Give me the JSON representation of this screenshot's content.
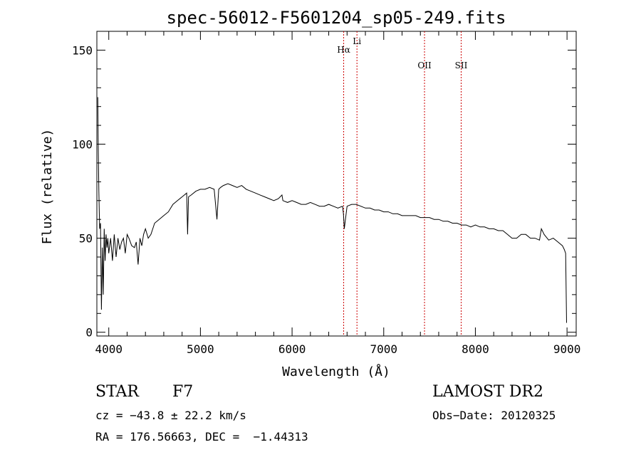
{
  "chart_data": {
    "type": "line",
    "title": "spec-56012-F5601204_sp05-249.fits",
    "xlabel": "Wavelength (Å)",
    "ylabel": "Flux (relative)",
    "xlim": [
      3870,
      9100
    ],
    "ylim": [
      -2,
      160
    ],
    "xticks": [
      4000,
      5000,
      6000,
      7000,
      8000,
      9000
    ],
    "yticks": [
      0,
      50,
      100,
      150
    ],
    "grid": false,
    "line_color": "#000000",
    "marker_color": "#cc0000",
    "series": [
      {
        "x": [
          3880,
          3885,
          3892,
          3900,
          3910,
          3920,
          3930,
          3940,
          3950,
          3960,
          3970,
          3980,
          3990,
          4000,
          4020,
          4040,
          4060,
          4080,
          4100,
          4120,
          4140,
          4160,
          4180,
          4200,
          4220,
          4250,
          4280,
          4300,
          4320,
          4340,
          4360,
          4380,
          4400,
          4430,
          4460,
          4500,
          4550,
          4600,
          4650,
          4700,
          4750,
          4800,
          4850,
          4860,
          4870,
          4900,
          4950,
          5000,
          5050,
          5100,
          5150,
          5180,
          5200,
          5220,
          5250,
          5300,
          5350,
          5400,
          5450,
          5500,
          5550,
          5600,
          5650,
          5700,
          5750,
          5800,
          5850,
          5890,
          5900,
          5950,
          6000,
          6050,
          6100,
          6150,
          6200,
          6250,
          6300,
          6350,
          6400,
          6450,
          6500,
          6550,
          6560,
          6570,
          6600,
          6650,
          6700,
          6750,
          6800,
          6850,
          6900,
          6950,
          7000,
          7050,
          7100,
          7150,
          7200,
          7250,
          7300,
          7350,
          7400,
          7450,
          7500,
          7550,
          7600,
          7650,
          7700,
          7750,
          7800,
          7850,
          7900,
          7950,
          8000,
          8050,
          8100,
          8150,
          8200,
          8250,
          8300,
          8350,
          8400,
          8450,
          8500,
          8550,
          8600,
          8650,
          8700,
          8720,
          8750,
          8800,
          8850,
          8900,
          8950,
          8970,
          8985,
          8995
        ],
        "y": [
          125,
          100,
          75,
          55,
          58,
          12,
          45,
          20,
          55,
          38,
          52,
          45,
          50,
          42,
          50,
          38,
          52,
          40,
          50,
          44,
          48,
          50,
          42,
          52,
          50,
          46,
          45,
          48,
          36,
          50,
          46,
          52,
          55,
          50,
          52,
          58,
          60,
          62,
          64,
          68,
          70,
          72,
          74,
          52,
          72,
          73,
          75,
          76,
          76,
          77,
          76,
          60,
          76,
          77,
          78,
          79,
          78,
          77,
          78,
          76,
          75,
          74,
          73,
          72,
          71,
          70,
          71,
          73,
          70,
          69,
          70,
          69,
          68,
          68,
          69,
          68,
          67,
          67,
          68,
          67,
          66,
          67,
          63,
          55,
          67,
          68,
          68,
          67,
          66,
          66,
          65,
          65,
          64,
          64,
          63,
          63,
          62,
          62,
          62,
          62,
          61,
          61,
          61,
          60,
          60,
          59,
          59,
          58,
          58,
          57,
          57,
          56,
          57,
          56,
          56,
          55,
          55,
          54,
          54,
          52,
          50,
          50,
          52,
          52,
          50,
          50,
          49,
          55,
          52,
          49,
          50,
          48,
          46,
          44,
          42,
          5
        ]
      }
    ],
    "lines": [
      {
        "label": "Hα",
        "x": 6563
      },
      {
        "label": "Li",
        "x": 6708
      },
      {
        "label": "OII",
        "x": 7445
      },
      {
        "label": "SII",
        "x": 7845
      }
    ]
  },
  "info": {
    "obj_class": "STAR",
    "subclass": "F7",
    "survey": "LAMOST DR2",
    "cz": "cz = −43.8 ± 22.2 km/s",
    "obs_date": "Obs−Date: 20120325",
    "radec": "RA = 176.56663, DEC =  −1.44313"
  }
}
